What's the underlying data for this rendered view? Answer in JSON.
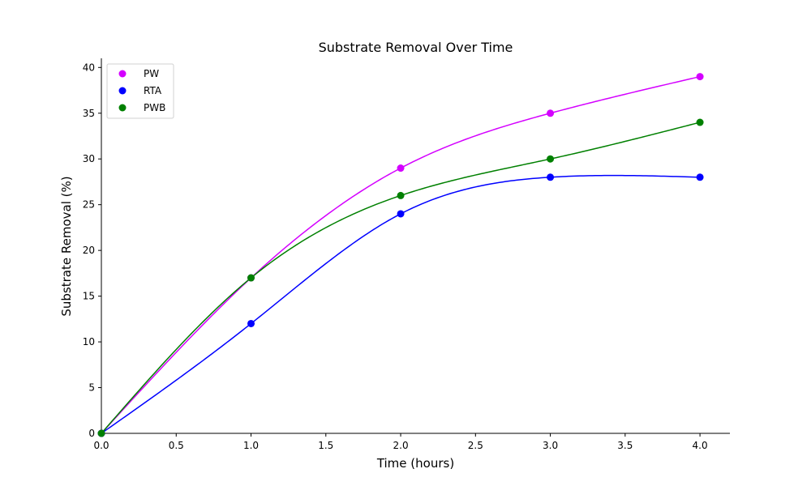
{
  "chart_data": {
    "type": "line",
    "title": "Substrate Removal Over Time",
    "xlabel": "Time (hours)",
    "ylabel": "Substrate Removal (%)",
    "x": [
      0,
      1,
      2,
      3,
      4
    ],
    "xlim": [
      0,
      4.2
    ],
    "ylim": [
      0,
      41
    ],
    "xticks": [
      "0.0",
      "0.5",
      "1.0",
      "1.5",
      "2.0",
      "2.5",
      "3.0",
      "3.5",
      "4.0"
    ],
    "yticks": [
      "0",
      "5",
      "10",
      "15",
      "20",
      "25",
      "30",
      "35",
      "40"
    ],
    "grid": false,
    "legend_position": "top-left",
    "series": [
      {
        "name": "PW",
        "color": "#d400ff",
        "values": [
          0,
          17,
          29,
          35,
          39
        ]
      },
      {
        "name": "RTA",
        "color": "#0000ff",
        "values": [
          0,
          12,
          24,
          28,
          28
        ]
      },
      {
        "name": "PWB",
        "color": "#008000",
        "values": [
          0,
          17,
          26,
          30,
          34
        ]
      }
    ]
  }
}
